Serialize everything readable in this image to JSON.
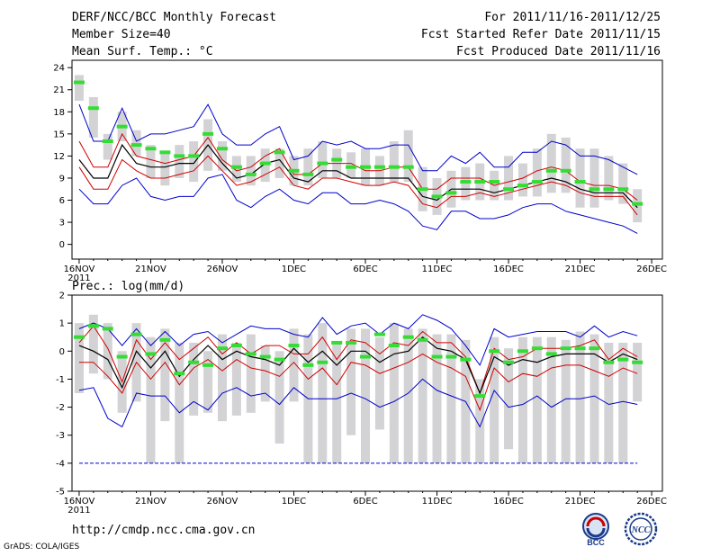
{
  "header": {
    "title": "DERF/NCC/BCC Monthly Forecast",
    "member_size": "Member Size=40",
    "variable": "Mean Surf. Temp.: °C",
    "period": "For 2011/11/16-2011/12/25",
    "started_date": "Fcst Started Refer Date 2011/11/15",
    "produced_date": "Fcst Produced Date 2011/11/16"
  },
  "footer": {
    "url": "http://cmdp.ncc.cma.gov.cn",
    "credit": "GrADS: COLA/IGES",
    "logo_bcc": "BCC",
    "logo_ncc": "NCC"
  },
  "colors": {
    "envelope_outer": "#0000cc",
    "envelope_inner": "#d00000",
    "median": "#000000",
    "box": "#d3d3d6",
    "dash": "#33dd33",
    "frame": "#000000"
  },
  "chart_data": [
    {
      "type": "line",
      "title": "Mean Surf. Temp.: °C",
      "ylabel": "Mean Surf. Temp. (°C)",
      "ylim": [
        -2,
        25
      ],
      "yticks": [
        0,
        3,
        6,
        9,
        12,
        15,
        18,
        21,
        24
      ],
      "x_tick_days": [
        0,
        5,
        10,
        15,
        20,
        25,
        30,
        35,
        40
      ],
      "x_tick_labels": [
        "16NOV",
        "21NOV",
        "26NOV",
        "1DEC",
        "6DEC",
        "11DEC",
        "16DEC",
        "21DEC",
        "26DEC"
      ],
      "x_year_label": "2011",
      "lines": {
        "max": [
          19,
          14,
          14,
          18.5,
          14,
          15,
          15,
          15.5,
          16,
          19,
          15,
          13.5,
          13.5,
          15,
          16,
          11.5,
          12,
          14,
          13.5,
          14,
          13,
          13,
          13.5,
          13.5,
          10,
          10,
          12,
          11,
          12.5,
          10.5,
          10.5,
          12.5,
          12.5,
          14,
          13.5,
          12,
          12,
          11.5,
          10.5,
          9.5
        ],
        "p75": [
          14,
          10.5,
          10.5,
          15,
          12,
          11.5,
          11,
          11.5,
          12,
          14.5,
          11.5,
          10,
          10.5,
          12,
          13,
          9.5,
          9.5,
          11,
          11,
          11,
          10,
          10,
          10.5,
          10.5,
          7.5,
          7.5,
          9,
          9,
          9,
          8,
          8.5,
          9,
          10,
          10.5,
          10,
          8.5,
          8,
          8,
          7.5,
          6
        ],
        "median": [
          11.5,
          9,
          9,
          13.5,
          11,
          10.5,
          10.5,
          11,
          11,
          13.5,
          11,
          9,
          9.5,
          11,
          11.5,
          9,
          8.5,
          10,
          10,
          9,
          9,
          9,
          9,
          9,
          6.5,
          6,
          7.5,
          7.5,
          7.5,
          7,
          7.5,
          8,
          8.5,
          9,
          8.5,
          7.5,
          7,
          7,
          7,
          5
        ],
        "p25": [
          10.5,
          7.5,
          7.5,
          11.5,
          10,
          9,
          9,
          9.5,
          10,
          12,
          10,
          8,
          8.5,
          9.5,
          10.5,
          8,
          7.5,
          9,
          9,
          8.5,
          8,
          8,
          8.5,
          8,
          5.5,
          5,
          6.5,
          6.5,
          7,
          6.5,
          7,
          7.5,
          8,
          8.5,
          8,
          7,
          6.5,
          6.5,
          6.5,
          4
        ],
        "min": [
          7.5,
          5.5,
          5.5,
          8,
          9,
          6.5,
          6,
          6.5,
          6.5,
          9,
          9.5,
          6,
          5,
          6.5,
          7.5,
          6,
          5.5,
          7,
          7,
          5.5,
          5.5,
          6,
          5.5,
          4.5,
          2.5,
          2,
          4.5,
          4.5,
          3.5,
          3.5,
          4,
          5,
          5.5,
          5.5,
          4.5,
          4,
          3.5,
          3,
          2.5,
          1.5
        ]
      },
      "boxes": [
        [
          19.5,
          23
        ],
        [
          14.5,
          20
        ],
        [
          11.5,
          15
        ],
        [
          14,
          18
        ],
        [
          12,
          15.5
        ],
        [
          9,
          13.5
        ],
        [
          8,
          12.5
        ],
        [
          9,
          13.5
        ],
        [
          8.5,
          14
        ],
        [
          10,
          17
        ],
        [
          10,
          14
        ],
        [
          8.5,
          12
        ],
        [
          8,
          12
        ],
        [
          8.5,
          13
        ],
        [
          9,
          13
        ],
        [
          8,
          12
        ],
        [
          8,
          13
        ],
        [
          9,
          14
        ],
        [
          9,
          13
        ],
        [
          9,
          12.5
        ],
        [
          8,
          13
        ],
        [
          8,
          12
        ],
        [
          8.5,
          14
        ],
        [
          8.5,
          15.5
        ],
        [
          4.5,
          10.5
        ],
        [
          4,
          9
        ],
        [
          5,
          10
        ],
        [
          6,
          10.5
        ],
        [
          6,
          11
        ],
        [
          6,
          10
        ],
        [
          6,
          12
        ],
        [
          6.5,
          11
        ],
        [
          6.5,
          13
        ],
        [
          7,
          15
        ],
        [
          7,
          14.5
        ],
        [
          5,
          13
        ],
        [
          5,
          13
        ],
        [
          6,
          12
        ],
        [
          5.5,
          11
        ],
        [
          3,
          7.5
        ]
      ],
      "green_dashes": [
        22,
        18.5,
        14,
        16,
        13.5,
        13,
        12.5,
        12,
        12,
        15,
        13,
        10.5,
        9.5,
        11,
        12.5,
        10,
        9.5,
        11,
        11.5,
        10.5,
        10.5,
        10.5,
        10.5,
        10.5,
        7.5,
        6.5,
        7,
        8.5,
        8.5,
        8.5,
        7.5,
        8,
        8.5,
        10,
        10,
        8.5,
        7.5,
        7.5,
        7.5,
        5.5
      ]
    },
    {
      "type": "line",
      "title": "Prec.: log(mm/d)",
      "ylabel": "Precipitation log(mm/d)",
      "ylim": [
        -5,
        2
      ],
      "yticks": [
        -5,
        -4,
        -3,
        -2,
        -1,
        0,
        1,
        2
      ],
      "x_tick_days": [
        0,
        5,
        10,
        15,
        20,
        25,
        30,
        35,
        40
      ],
      "x_tick_labels": [
        "16NOV",
        "21NOV",
        "26NOV",
        "1DEC",
        "6DEC",
        "11DEC",
        "16DEC",
        "21DEC",
        "26DEC"
      ],
      "x_year_label": "2011",
      "lines": {
        "max": [
          0.8,
          1,
          0.8,
          0.2,
          0.8,
          0.2,
          0.7,
          0.2,
          0.6,
          0.7,
          0.3,
          0.6,
          0.9,
          0.8,
          0.8,
          0.6,
          0.5,
          1.2,
          0.6,
          0.9,
          1,
          0.6,
          1,
          0.8,
          1.3,
          1.1,
          0.8,
          0.2,
          -0.5,
          0.8,
          0.5,
          0.6,
          0.7,
          0.7,
          0.7,
          0.5,
          0.9,
          0.5,
          0.7,
          0.55
        ],
        "p75": [
          0.3,
          0.9,
          0.1,
          -1.1,
          0.4,
          -0.3,
          0.3,
          -0.3,
          0.1,
          0.5,
          -0.1,
          0.3,
          -0.1,
          0.2,
          0.2,
          -0.1,
          -0.1,
          0.5,
          -0.3,
          0.4,
          0.3,
          -0.1,
          0.3,
          0.2,
          0.7,
          0.3,
          0.3,
          -0.2,
          -1.5,
          0.1,
          -0.3,
          -0.2,
          0.1,
          0.1,
          0.1,
          0.2,
          0.4,
          -0.3,
          0.1,
          -0.2
        ],
        "median": [
          0.2,
          0,
          -0.3,
          -1.3,
          0,
          -0.6,
          0,
          -0.9,
          -0.3,
          0.2,
          -0.3,
          0,
          -0.2,
          -0.3,
          -0.5,
          0.1,
          -0.4,
          0,
          -0.5,
          0,
          0,
          -0.4,
          -0.1,
          0,
          0.5,
          0.1,
          0,
          -0.3,
          -1.5,
          -0.2,
          -0.5,
          -0.3,
          -0.4,
          -0.2,
          -0.1,
          -0.1,
          -0.1,
          -0.4,
          -0.1,
          -0.3
        ],
        "p25": [
          -0.4,
          -0.4,
          -0.9,
          -1.5,
          -0.4,
          -1,
          -0.4,
          -1.2,
          -0.6,
          -0.3,
          -0.7,
          -0.3,
          -0.6,
          -0.7,
          -0.9,
          -0.4,
          -1,
          -0.6,
          -1.2,
          -0.4,
          -0.5,
          -0.8,
          -0.6,
          -0.4,
          -0.1,
          -0.4,
          -0.6,
          -0.9,
          -2.1,
          -0.6,
          -1.1,
          -0.8,
          -0.9,
          -0.6,
          -0.5,
          -0.5,
          -0.7,
          -0.9,
          -0.6,
          -0.8
        ],
        "min": [
          -1.4,
          -1.3,
          -2.4,
          -2.7,
          -1.5,
          -1.6,
          -1.6,
          -2.2,
          -1.8,
          -2.1,
          -1.5,
          -1.3,
          -1.6,
          -1.5,
          -1.9,
          -1.3,
          -1.7,
          -1.7,
          -1.7,
          -1.5,
          -1.7,
          -2,
          -1.8,
          -1.5,
          -1,
          -1.4,
          -1.6,
          -1.8,
          -2.7,
          -1.4,
          -2,
          -1.9,
          -1.6,
          -2,
          -1.7,
          -1.7,
          -1.6,
          -1.9,
          -1.8,
          -1.9
        ],
        "floor": [
          -4,
          -4,
          -4,
          -4,
          -4,
          -4,
          -4,
          -4,
          -4,
          -4,
          -4,
          -4,
          -4,
          -4,
          -4,
          -4,
          -4,
          -4,
          -4,
          -4,
          -4,
          -4,
          -4,
          -4,
          -4,
          -4,
          -4,
          -4,
          -4,
          -4,
          -4,
          -4,
          -4,
          -4,
          -4,
          -4,
          -4,
          -4,
          -4,
          -4
        ]
      },
      "boxes": [
        [
          -1.5,
          1
        ],
        [
          -0.8,
          1.3
        ],
        [
          -1,
          1
        ],
        [
          -2.2,
          0
        ],
        [
          -1.8,
          1
        ],
        [
          -4,
          0.5
        ],
        [
          -2.5,
          0.8
        ],
        [
          -4,
          0.3
        ],
        [
          -2.3,
          0.3
        ],
        [
          -2.2,
          0
        ],
        [
          -2.5,
          0.6
        ],
        [
          -2.3,
          0.3
        ],
        [
          -2.2,
          0.6
        ],
        [
          -1.8,
          0.2
        ],
        [
          -3.3,
          0
        ],
        [
          -1.8,
          0.8
        ],
        [
          -4,
          0.6
        ],
        [
          -4,
          1
        ],
        [
          -4,
          0.3
        ],
        [
          -3,
          0.8
        ],
        [
          -4,
          0.8
        ],
        [
          -2.8,
          0.5
        ],
        [
          -4,
          1
        ],
        [
          -4,
          0.8
        ],
        [
          -4,
          0.8
        ],
        [
          -4,
          0.6
        ],
        [
          -4,
          0.6
        ],
        [
          -4,
          0.4
        ],
        [
          -4,
          -1
        ],
        [
          -4,
          0.5
        ],
        [
          -3.5,
          0.1
        ],
        [
          -4,
          0.5
        ],
        [
          -4,
          0.5
        ],
        [
          -4,
          0.5
        ],
        [
          -4,
          0.4
        ],
        [
          -4,
          0.7
        ],
        [
          -4,
          0.6
        ],
        [
          -4,
          0.3
        ],
        [
          -4,
          0.3
        ],
        [
          -1.8,
          0.3
        ]
      ],
      "green_dashes": [
        0.5,
        0.9,
        0.8,
        -0.2,
        0.6,
        -0.1,
        0.4,
        -0.8,
        -0.4,
        -0.5,
        0.1,
        0.2,
        -0.1,
        -0.2,
        -0.3,
        0.2,
        -0.5,
        -0.4,
        0.3,
        0.3,
        -0.2,
        0.6,
        0.2,
        0.5,
        0.4,
        -0.2,
        -0.2,
        -0.3,
        -1.6,
        0,
        -0.4,
        0,
        0.1,
        -0.1,
        0.1,
        0.1,
        0.1,
        -0.4,
        -0.3,
        -0.4
      ]
    }
  ]
}
